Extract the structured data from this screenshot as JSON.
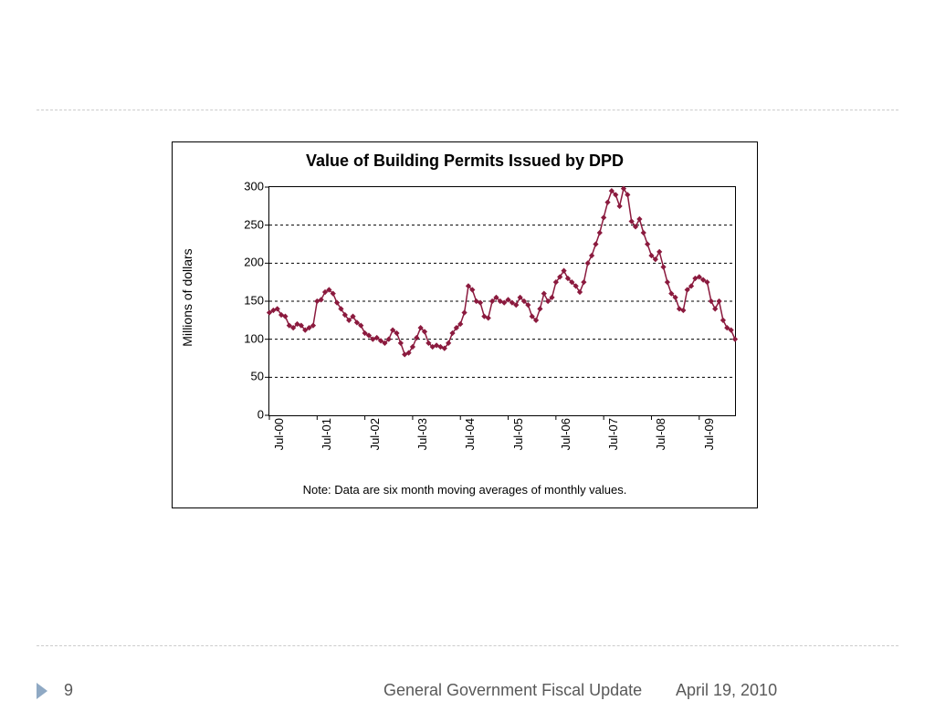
{
  "chart": {
    "type": "line",
    "title": "Value of Building Permits Issued  by DPD",
    "y_axis_title": "Millions of dollars",
    "note": "Note: Data are six month moving averages of monthly values.",
    "background_color": "#ffffff",
    "border_color": "#000000",
    "grid_color": "#000000",
    "grid_dash": "3,3",
    "line_color": "#8b1a3e",
    "marker_color": "#8b1a3e",
    "line_width": 1.5,
    "marker_size": 2.2,
    "title_fontsize": 18,
    "label_fontsize": 13,
    "ylim": [
      0,
      300
    ],
    "ytick_step": 50,
    "y_ticks": [
      0,
      50,
      100,
      150,
      200,
      250,
      300
    ],
    "x_tick_labels": [
      "Jul-00",
      "Jul-01",
      "Jul-02",
      "Jul-03",
      "Jul-04",
      "Jul-05",
      "Jul-06",
      "Jul-07",
      "Jul-08",
      "Jul-09"
    ],
    "x_tick_positions": [
      0,
      12,
      24,
      36,
      48,
      60,
      72,
      84,
      96,
      108
    ],
    "n_points": 118,
    "values": [
      135,
      138,
      140,
      132,
      130,
      118,
      115,
      120,
      118,
      112,
      115,
      118,
      150,
      152,
      162,
      165,
      160,
      148,
      140,
      132,
      125,
      130,
      122,
      118,
      108,
      105,
      100,
      102,
      98,
      95,
      100,
      112,
      108,
      95,
      80,
      82,
      90,
      102,
      115,
      110,
      95,
      90,
      92,
      90,
      88,
      95,
      108,
      115,
      120,
      135,
      170,
      165,
      150,
      148,
      130,
      128,
      150,
      155,
      150,
      148,
      152,
      148,
      145,
      155,
      150,
      145,
      130,
      125,
      140,
      160,
      150,
      155,
      175,
      182,
      190,
      180,
      175,
      170,
      162,
      175,
      200,
      210,
      225,
      240,
      260,
      280,
      295,
      290,
      275,
      298,
      290,
      255,
      248,
      258,
      240,
      225,
      210,
      205,
      215,
      195,
      175,
      160,
      155,
      140,
      138,
      165,
      170,
      180,
      182,
      178,
      175,
      150,
      140,
      150,
      125,
      115,
      112,
      100
    ]
  },
  "footer": {
    "page_number": "9",
    "title": "General Government Fiscal Update",
    "date": "April 19, 2010",
    "icon_color": "#8fa9c4"
  }
}
